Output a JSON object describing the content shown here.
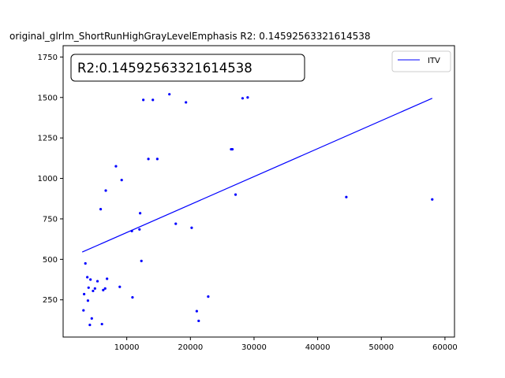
{
  "chart_data": {
    "type": "scatter",
    "title": "original_glrlm_ShortRunHighGrayLevelEmphasis R2: 0.14592563321614538",
    "annotation": "R2:0.14592563321614538",
    "xlim": [
      0,
      61500
    ],
    "ylim": [
      20,
      1820
    ],
    "xticks": [
      10000,
      20000,
      30000,
      40000,
      50000,
      60000
    ],
    "yticks": [
      250,
      500,
      750,
      1000,
      1250,
      1500,
      1750
    ],
    "grid": false,
    "legend_position": "top-right",
    "point_color": "#0000ff",
    "line_color": "#0000ff",
    "series": [
      {
        "name": "ITV",
        "kind": "line",
        "x": [
          3000,
          58000
        ],
        "y": [
          545,
          1495
        ]
      },
      {
        "kind": "scatter",
        "x": [
          3200,
          3300,
          3500,
          3800,
          3900,
          4000,
          4200,
          4300,
          4500,
          4700,
          5000,
          5400,
          5900,
          6100,
          6300,
          6600,
          6700,
          6900,
          8300,
          8900,
          9200,
          10800,
          10900,
          12000,
          12100,
          12300,
          12600,
          13400,
          14100,
          14800,
          16700,
          17700,
          19300,
          20200,
          21000,
          21300,
          22800,
          26400,
          26600,
          27100,
          28200,
          29000,
          44500,
          58000
        ],
        "y": [
          185,
          285,
          475,
          390,
          245,
          325,
          95,
          375,
          135,
          305,
          320,
          365,
          810,
          100,
          310,
          320,
          925,
          380,
          1075,
          330,
          990,
          675,
          265,
          685,
          785,
          490,
          1485,
          1120,
          1485,
          1120,
          1520,
          720,
          1470,
          695,
          180,
          120,
          270,
          1180,
          1180,
          900,
          1495,
          1500,
          885,
          870
        ]
      }
    ]
  }
}
